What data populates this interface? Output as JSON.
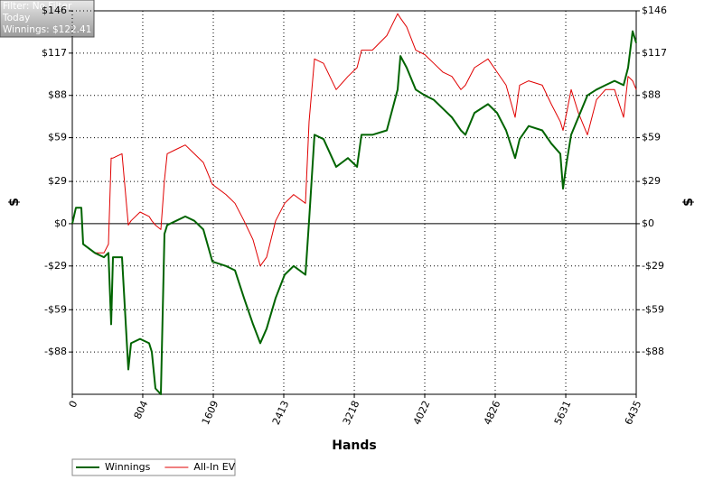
{
  "chart_data": {
    "type": "line",
    "annotations": [
      "Filter: No Filter",
      "Today",
      "Winnings: $122.41"
    ],
    "x_label": "Hands",
    "y_label": "$",
    "x": [
      0,
      41,
      103,
      124,
      258,
      361,
      413,
      443,
      464,
      567,
      639,
      670,
      773,
      877,
      908,
      949,
      1011,
      1052,
      1083,
      1186,
      1289,
      1392,
      1495,
      1598,
      1753,
      1856,
      1959,
      2063,
      2145,
      2217,
      2320,
      2423,
      2526,
      2661,
      2702,
      2764,
      2867,
      3011,
      3145,
      3249,
      3300,
      3424,
      3589,
      3713,
      3744,
      3816,
      3919,
      4022,
      4125,
      4228,
      4331,
      4434,
      4486,
      4589,
      4744,
      4847,
      4950,
      5053,
      5105,
      5208,
      5363,
      5466,
      5569,
      5600,
      5641,
      5692,
      5775,
      5878,
      5981,
      6084,
      6188,
      6291,
      6342,
      6394,
      6435
    ],
    "series": [
      {
        "name": "Winnings",
        "color": "#006400",
        "width": 2,
        "values": [
          0,
          11,
          11,
          -14,
          -20,
          -23,
          -20,
          -69,
          -23,
          -23,
          -100,
          -82,
          -79,
          -82,
          -88,
          -113,
          -117,
          -7,
          -1,
          2,
          5,
          2,
          -4,
          -26,
          -29,
          -32,
          -51,
          -69,
          -82,
          -72,
          -51,
          -35,
          -29,
          -35,
          2,
          61,
          58,
          39,
          45,
          39,
          61,
          61,
          64,
          92,
          115,
          107,
          92,
          88,
          85,
          79,
          73,
          64,
          61,
          76,
          82,
          76,
          64,
          45,
          58,
          67,
          64,
          55,
          48,
          24,
          42,
          61,
          73,
          88,
          92,
          95,
          98,
          95,
          107,
          132,
          124
        ]
      },
      {
        "name": "All-In EV",
        "color": "#e00000",
        "width": 1,
        "values": [
          0,
          11,
          11,
          -14,
          -20,
          -20,
          -14,
          45,
          45,
          48,
          -1,
          2,
          8,
          5,
          2,
          -1,
          -4,
          30,
          48,
          51,
          54,
          48,
          42,
          27,
          20,
          14,
          2,
          -11,
          -29,
          -23,
          2,
          14,
          20,
          14,
          70,
          113,
          110,
          92,
          101,
          107,
          119,
          119,
          129,
          144,
          141,
          135,
          119,
          116,
          110,
          104,
          101,
          92,
          95,
          107,
          113,
          104,
          95,
          73,
          95,
          98,
          95,
          82,
          70,
          64,
          76,
          92,
          76,
          61,
          85,
          92,
          92,
          73,
          101,
          98,
          92
        ]
      }
    ],
    "xlim": [
      0,
      6435
    ],
    "xticks": [
      0,
      804,
      1609,
      2413,
      3218,
      4022,
      4826,
      5631,
      6435
    ],
    "ylim": [
      -117,
      146
    ],
    "yticks": [
      {
        "value": -88,
        "label": "-$88"
      },
      {
        "value": -59,
        "label": "-$59"
      },
      {
        "value": -29,
        "label": "-$29"
      },
      {
        "value": 0,
        "label": "$0"
      },
      {
        "value": 29,
        "label": "$29"
      },
      {
        "value": 59,
        "label": "$59"
      },
      {
        "value": 88,
        "label": "$88"
      },
      {
        "value": 117,
        "label": "$117"
      },
      {
        "value": 146,
        "label": "$146"
      }
    ],
    "grid": true
  }
}
